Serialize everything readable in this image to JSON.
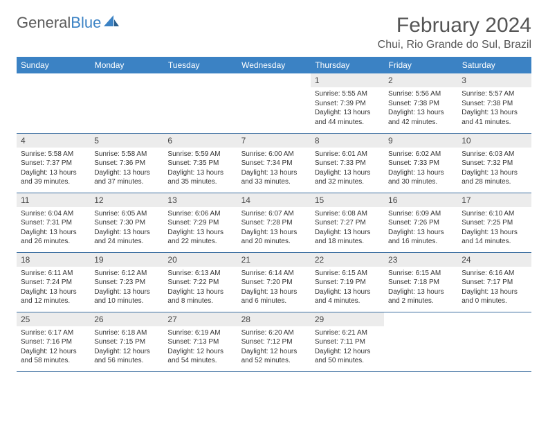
{
  "logo": {
    "text_gray": "General",
    "text_blue": "Blue"
  },
  "title": "February 2024",
  "location": "Chui, Rio Grande do Sul, Brazil",
  "colors": {
    "header_bg": "#3b82c4",
    "header_text": "#ffffff",
    "daynum_bg": "#ececec",
    "row_border": "#3b6ea0",
    "body_text": "#333333",
    "title_text": "#555555"
  },
  "day_headers": [
    "Sunday",
    "Monday",
    "Tuesday",
    "Wednesday",
    "Thursday",
    "Friday",
    "Saturday"
  ],
  "weeks": [
    [
      {
        "empty": true
      },
      {
        "empty": true
      },
      {
        "empty": true
      },
      {
        "empty": true
      },
      {
        "n": "1",
        "sr": "Sunrise: 5:55 AM",
        "ss": "Sunset: 7:39 PM",
        "d1": "Daylight: 13 hours",
        "d2": "and 44 minutes."
      },
      {
        "n": "2",
        "sr": "Sunrise: 5:56 AM",
        "ss": "Sunset: 7:38 PM",
        "d1": "Daylight: 13 hours",
        "d2": "and 42 minutes."
      },
      {
        "n": "3",
        "sr": "Sunrise: 5:57 AM",
        "ss": "Sunset: 7:38 PM",
        "d1": "Daylight: 13 hours",
        "d2": "and 41 minutes."
      }
    ],
    [
      {
        "n": "4",
        "sr": "Sunrise: 5:58 AM",
        "ss": "Sunset: 7:37 PM",
        "d1": "Daylight: 13 hours",
        "d2": "and 39 minutes."
      },
      {
        "n": "5",
        "sr": "Sunrise: 5:58 AM",
        "ss": "Sunset: 7:36 PM",
        "d1": "Daylight: 13 hours",
        "d2": "and 37 minutes."
      },
      {
        "n": "6",
        "sr": "Sunrise: 5:59 AM",
        "ss": "Sunset: 7:35 PM",
        "d1": "Daylight: 13 hours",
        "d2": "and 35 minutes."
      },
      {
        "n": "7",
        "sr": "Sunrise: 6:00 AM",
        "ss": "Sunset: 7:34 PM",
        "d1": "Daylight: 13 hours",
        "d2": "and 33 minutes."
      },
      {
        "n": "8",
        "sr": "Sunrise: 6:01 AM",
        "ss": "Sunset: 7:33 PM",
        "d1": "Daylight: 13 hours",
        "d2": "and 32 minutes."
      },
      {
        "n": "9",
        "sr": "Sunrise: 6:02 AM",
        "ss": "Sunset: 7:33 PM",
        "d1": "Daylight: 13 hours",
        "d2": "and 30 minutes."
      },
      {
        "n": "10",
        "sr": "Sunrise: 6:03 AM",
        "ss": "Sunset: 7:32 PM",
        "d1": "Daylight: 13 hours",
        "d2": "and 28 minutes."
      }
    ],
    [
      {
        "n": "11",
        "sr": "Sunrise: 6:04 AM",
        "ss": "Sunset: 7:31 PM",
        "d1": "Daylight: 13 hours",
        "d2": "and 26 minutes."
      },
      {
        "n": "12",
        "sr": "Sunrise: 6:05 AM",
        "ss": "Sunset: 7:30 PM",
        "d1": "Daylight: 13 hours",
        "d2": "and 24 minutes."
      },
      {
        "n": "13",
        "sr": "Sunrise: 6:06 AM",
        "ss": "Sunset: 7:29 PM",
        "d1": "Daylight: 13 hours",
        "d2": "and 22 minutes."
      },
      {
        "n": "14",
        "sr": "Sunrise: 6:07 AM",
        "ss": "Sunset: 7:28 PM",
        "d1": "Daylight: 13 hours",
        "d2": "and 20 minutes."
      },
      {
        "n": "15",
        "sr": "Sunrise: 6:08 AM",
        "ss": "Sunset: 7:27 PM",
        "d1": "Daylight: 13 hours",
        "d2": "and 18 minutes."
      },
      {
        "n": "16",
        "sr": "Sunrise: 6:09 AM",
        "ss": "Sunset: 7:26 PM",
        "d1": "Daylight: 13 hours",
        "d2": "and 16 minutes."
      },
      {
        "n": "17",
        "sr": "Sunrise: 6:10 AM",
        "ss": "Sunset: 7:25 PM",
        "d1": "Daylight: 13 hours",
        "d2": "and 14 minutes."
      }
    ],
    [
      {
        "n": "18",
        "sr": "Sunrise: 6:11 AM",
        "ss": "Sunset: 7:24 PM",
        "d1": "Daylight: 13 hours",
        "d2": "and 12 minutes."
      },
      {
        "n": "19",
        "sr": "Sunrise: 6:12 AM",
        "ss": "Sunset: 7:23 PM",
        "d1": "Daylight: 13 hours",
        "d2": "and 10 minutes."
      },
      {
        "n": "20",
        "sr": "Sunrise: 6:13 AM",
        "ss": "Sunset: 7:22 PM",
        "d1": "Daylight: 13 hours",
        "d2": "and 8 minutes."
      },
      {
        "n": "21",
        "sr": "Sunrise: 6:14 AM",
        "ss": "Sunset: 7:20 PM",
        "d1": "Daylight: 13 hours",
        "d2": "and 6 minutes."
      },
      {
        "n": "22",
        "sr": "Sunrise: 6:15 AM",
        "ss": "Sunset: 7:19 PM",
        "d1": "Daylight: 13 hours",
        "d2": "and 4 minutes."
      },
      {
        "n": "23",
        "sr": "Sunrise: 6:15 AM",
        "ss": "Sunset: 7:18 PM",
        "d1": "Daylight: 13 hours",
        "d2": "and 2 minutes."
      },
      {
        "n": "24",
        "sr": "Sunrise: 6:16 AM",
        "ss": "Sunset: 7:17 PM",
        "d1": "Daylight: 13 hours",
        "d2": "and 0 minutes."
      }
    ],
    [
      {
        "n": "25",
        "sr": "Sunrise: 6:17 AM",
        "ss": "Sunset: 7:16 PM",
        "d1": "Daylight: 12 hours",
        "d2": "and 58 minutes."
      },
      {
        "n": "26",
        "sr": "Sunrise: 6:18 AM",
        "ss": "Sunset: 7:15 PM",
        "d1": "Daylight: 12 hours",
        "d2": "and 56 minutes."
      },
      {
        "n": "27",
        "sr": "Sunrise: 6:19 AM",
        "ss": "Sunset: 7:13 PM",
        "d1": "Daylight: 12 hours",
        "d2": "and 54 minutes."
      },
      {
        "n": "28",
        "sr": "Sunrise: 6:20 AM",
        "ss": "Sunset: 7:12 PM",
        "d1": "Daylight: 12 hours",
        "d2": "and 52 minutes."
      },
      {
        "n": "29",
        "sr": "Sunrise: 6:21 AM",
        "ss": "Sunset: 7:11 PM",
        "d1": "Daylight: 12 hours",
        "d2": "and 50 minutes."
      },
      {
        "empty": true
      },
      {
        "empty": true
      }
    ]
  ]
}
